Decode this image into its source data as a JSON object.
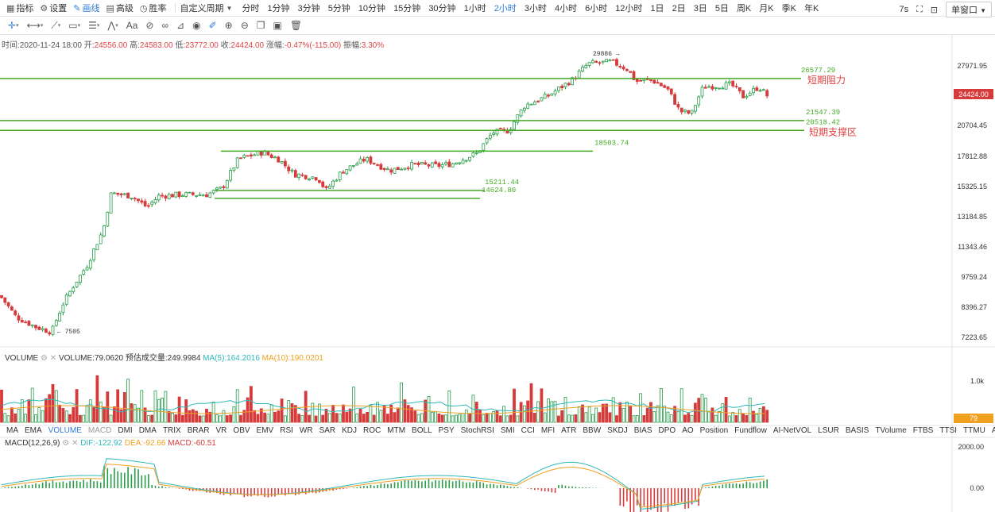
{
  "toolbar": {
    "indicator": "指标",
    "settings": "设置",
    "draw": "画线",
    "advanced": "高级",
    "winrate": "胜率",
    "custom_period": "自定义周期",
    "periods": [
      "分时",
      "1分钟",
      "3分钟",
      "5分钟",
      "10分钟",
      "15分钟",
      "30分钟",
      "1小时",
      "2小时",
      "3小时",
      "4小时",
      "6小时",
      "12小时",
      "1日",
      "2日",
      "3日",
      "5日",
      "周K",
      "月K",
      "季K",
      "年K"
    ],
    "active_period": "2小时",
    "refresh": "7s",
    "window_mode": "单窗口"
  },
  "info_bar": {
    "time_label": "时间:",
    "time": "2020-11-24 18:00",
    "open_label": "开:",
    "open": "24556.00",
    "high_label": "高:",
    "high": "24583.00",
    "low_label": "低:",
    "low": "23772.00",
    "close_label": "收:",
    "close": "24424.00",
    "change_label": "涨幅:",
    "change": "-0.47%(-115.00)",
    "amp_label": "振幅:",
    "amp": "3.30%"
  },
  "price_axis": [
    "27971.95",
    "20704.45",
    "17812.88",
    "15325.15",
    "13184.85",
    "11343.46",
    "9759.24",
    "8396.27",
    "7223.65"
  ],
  "last_price": "24424.00",
  "annotations": {
    "resistance_value": "26577.29",
    "resistance_label": "短期阻力",
    "support1": "21547.39",
    "support2": "20518.42",
    "support_label": "短期支撑区",
    "range_top": "18503.74",
    "range_mid": "15211.44",
    "range_low": "14624.80",
    "peak": "29886",
    "trough": "7505"
  },
  "volume_legend": {
    "name": "VOLUME",
    "value_label": "VOLUME:79.0620",
    "est": "预估成交量:249.9984",
    "ma5": "MA(5):164.2016",
    "ma10": "MA(10):190.0201"
  },
  "volume_axis": {
    "top": "1.0k",
    "current": "79"
  },
  "indicator_tabs": [
    "MA",
    "EMA",
    "VOLUME",
    "MACD",
    "DMI",
    "DMA",
    "TRIX",
    "BRAR",
    "VR",
    "OBV",
    "EMV",
    "RSI",
    "WR",
    "SAR",
    "KDJ",
    "ROC",
    "MTM",
    "BOLL",
    "PSY",
    "StochRSI",
    "SMI",
    "CCI",
    "MFI",
    "ATR",
    "BBW",
    "SKDJ",
    "BIAS",
    "DPO",
    "AO",
    "Position",
    "Fundflow",
    "AI-NetVOL",
    "LSUR",
    "BASIS",
    "TVolume",
    "FTBS",
    "TTSI",
    "TTMU",
    "AI-BSI"
  ],
  "active_indicator": "VOLUME",
  "disabled_indicator": "MACD",
  "macd_legend": {
    "name": "MACD(12,26,9)",
    "dif": "DIF:-122.92",
    "dea": "DEA:-92.66",
    "macd": "MACD:-60.51"
  },
  "macd_axis": [
    "2000.00",
    "0.00"
  ],
  "colors": {
    "up": "#2a9d4a",
    "down": "#d63a3a",
    "accent": "#2f7bd8",
    "line": "#44aa22",
    "ma5": "#2fb8b8",
    "ma10": "#f0a020"
  }
}
